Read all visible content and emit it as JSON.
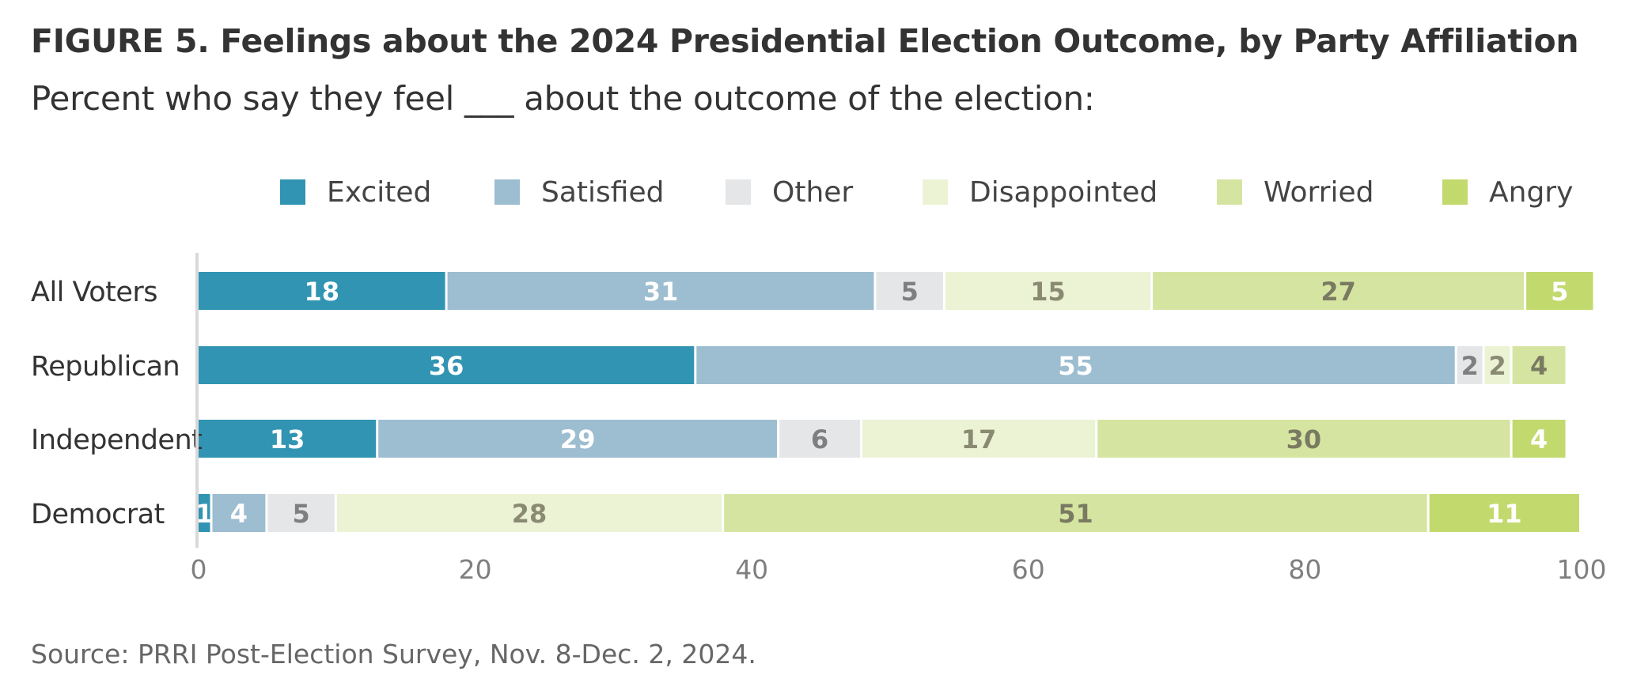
{
  "figure": {
    "title": "FIGURE 5.  Feelings about the 2024 Presidential Election Outcome, by Party Affiliation",
    "subtitle": "Percent who say they feel ___ about the outcome of the election:",
    "source": "Source: PRRI Post-Election Survey, Nov. 8-Dec. 2, 2024."
  },
  "chart_data": {
    "type": "bar",
    "orientation": "horizontal",
    "stacked": true,
    "categories": [
      "All Voters",
      "Republican",
      "Independent",
      "Democrat"
    ],
    "series": [
      {
        "name": "Excited",
        "color": "#3194b3",
        "label_color": "#ffffff",
        "values": [
          18,
          36,
          13,
          1
        ]
      },
      {
        "name": "Satisfied",
        "color": "#9dbdd0",
        "label_color": "#ffffff",
        "values": [
          31,
          55,
          29,
          4
        ]
      },
      {
        "name": "Other",
        "color": "#e5e6e8",
        "label_color": "#7f7f7f",
        "values": [
          5,
          2,
          6,
          5
        ]
      },
      {
        "name": "Disappointed",
        "color": "#ebf3d4",
        "label_color": "#8a8a72",
        "values": [
          15,
          2,
          17,
          28
        ]
      },
      {
        "name": "Worried",
        "color": "#d5e5a1",
        "label_color": "#7a7a62",
        "values": [
          27,
          4,
          30,
          51
        ]
      },
      {
        "name": "Angry",
        "color": "#c2d96e",
        "label_color": "#ffffff",
        "values": [
          5,
          0,
          4,
          11
        ]
      }
    ],
    "xlim": [
      0,
      100
    ],
    "xticks": [
      0,
      20,
      40,
      60,
      80,
      100
    ],
    "legend_position": "top",
    "grid": false
  }
}
